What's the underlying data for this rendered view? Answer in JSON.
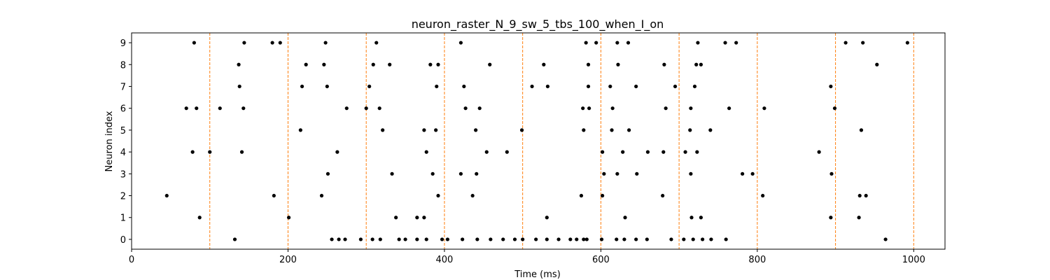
{
  "chart_data": {
    "type": "scatter",
    "title": "neuron_raster_N_9_sw_5_tbs_100_when_I_on",
    "xlabel": "Time (ms)",
    "ylabel": "Neuron index",
    "xlim": [
      0,
      1040
    ],
    "ylim": [
      -0.45,
      9.45
    ],
    "xticks": [
      0,
      200,
      400,
      600,
      800,
      1000
    ],
    "yticks": [
      0,
      1,
      2,
      3,
      4,
      5,
      6,
      7,
      8,
      9
    ],
    "marker_color": "#000000",
    "vline_color": "#ff7f0e",
    "vlines": [
      0,
      100,
      200,
      300,
      400,
      500,
      600,
      700,
      800,
      900,
      1000
    ],
    "grid": false,
    "series": [
      {
        "points": [
          [
            132,
            0
          ],
          [
            256,
            0
          ],
          [
            265,
            0
          ],
          [
            273,
            0
          ],
          [
            293,
            0
          ],
          [
            308,
            0
          ],
          [
            318,
            0
          ],
          [
            342,
            0
          ],
          [
            350,
            0
          ],
          [
            365,
            0
          ],
          [
            377,
            0
          ],
          [
            397,
            0
          ],
          [
            404,
            0
          ],
          [
            423,
            0
          ],
          [
            442,
            0
          ],
          [
            459,
            0
          ],
          [
            475,
            0
          ],
          [
            490,
            0
          ],
          [
            500,
            0
          ],
          [
            517,
            0
          ],
          [
            531,
            0
          ],
          [
            546,
            0
          ],
          [
            561,
            0
          ],
          [
            569,
            0
          ],
          [
            578,
            0
          ],
          [
            582,
            0
          ],
          [
            601,
            0
          ],
          [
            620,
            0
          ],
          [
            630,
            0
          ],
          [
            645,
            0
          ],
          [
            659,
            0
          ],
          [
            690,
            0
          ],
          [
            706,
            0
          ],
          [
            718,
            0
          ],
          [
            730,
            0
          ],
          [
            741,
            0
          ],
          [
            760,
            0
          ],
          [
            964,
            0
          ],
          [
            87,
            1
          ],
          [
            201,
            1
          ],
          [
            338,
            1
          ],
          [
            365,
            1
          ],
          [
            374,
            1
          ],
          [
            531,
            1
          ],
          [
            631,
            1
          ],
          [
            716,
            1
          ],
          [
            728,
            1
          ],
          [
            894,
            1
          ],
          [
            930,
            1
          ],
          [
            45,
            2
          ],
          [
            182,
            2
          ],
          [
            243,
            2
          ],
          [
            392,
            2
          ],
          [
            436,
            2
          ],
          [
            575,
            2
          ],
          [
            602,
            2
          ],
          [
            679,
            2
          ],
          [
            807,
            2
          ],
          [
            931,
            2
          ],
          [
            939,
            2
          ],
          [
            251,
            3
          ],
          [
            333,
            3
          ],
          [
            385,
            3
          ],
          [
            421,
            3
          ],
          [
            441,
            3
          ],
          [
            604,
            3
          ],
          [
            621,
            3
          ],
          [
            646,
            3
          ],
          [
            715,
            3
          ],
          [
            781,
            3
          ],
          [
            794,
            3
          ],
          [
            895,
            3
          ],
          [
            78,
            4
          ],
          [
            100,
            4
          ],
          [
            141,
            4
          ],
          [
            263,
            4
          ],
          [
            377,
            4
          ],
          [
            454,
            4
          ],
          [
            480,
            4
          ],
          [
            602,
            4
          ],
          [
            628,
            4
          ],
          [
            660,
            4
          ],
          [
            680,
            4
          ],
          [
            708,
            4
          ],
          [
            723,
            4
          ],
          [
            879,
            4
          ],
          [
            216,
            5
          ],
          [
            321,
            5
          ],
          [
            374,
            5
          ],
          [
            389,
            5
          ],
          [
            440,
            5
          ],
          [
            499,
            5
          ],
          [
            578,
            5
          ],
          [
            614,
            5
          ],
          [
            636,
            5
          ],
          [
            714,
            5
          ],
          [
            740,
            5
          ],
          [
            933,
            5
          ],
          [
            70,
            6
          ],
          [
            83,
            6
          ],
          [
            113,
            6
          ],
          [
            143,
            6
          ],
          [
            275,
            6
          ],
          [
            300,
            6
          ],
          [
            317,
            6
          ],
          [
            427,
            6
          ],
          [
            445,
            6
          ],
          [
            577,
            6
          ],
          [
            585,
            6
          ],
          [
            615,
            6
          ],
          [
            683,
            6
          ],
          [
            715,
            6
          ],
          [
            764,
            6
          ],
          [
            809,
            6
          ],
          [
            899,
            6
          ],
          [
            138,
            7
          ],
          [
            218,
            7
          ],
          [
            250,
            7
          ],
          [
            304,
            7
          ],
          [
            390,
            7
          ],
          [
            425,
            7
          ],
          [
            512,
            7
          ],
          [
            532,
            7
          ],
          [
            584,
            7
          ],
          [
            612,
            7
          ],
          [
            645,
            7
          ],
          [
            695,
            7
          ],
          [
            720,
            7
          ],
          [
            894,
            7
          ],
          [
            137,
            8
          ],
          [
            223,
            8
          ],
          [
            246,
            8
          ],
          [
            309,
            8
          ],
          [
            330,
            8
          ],
          [
            382,
            8
          ],
          [
            392,
            8
          ],
          [
            458,
            8
          ],
          [
            527,
            8
          ],
          [
            584,
            8
          ],
          [
            622,
            8
          ],
          [
            681,
            8
          ],
          [
            722,
            8
          ],
          [
            728,
            8
          ],
          [
            953,
            8
          ],
          [
            80,
            9
          ],
          [
            144,
            9
          ],
          [
            180,
            9
          ],
          [
            190,
            9
          ],
          [
            248,
            9
          ],
          [
            313,
            9
          ],
          [
            421,
            9
          ],
          [
            581,
            9
          ],
          [
            594,
            9
          ],
          [
            621,
            9
          ],
          [
            635,
            9
          ],
          [
            724,
            9
          ],
          [
            759,
            9
          ],
          [
            773,
            9
          ],
          [
            913,
            9
          ],
          [
            935,
            9
          ],
          [
            992,
            9
          ]
        ]
      }
    ]
  }
}
